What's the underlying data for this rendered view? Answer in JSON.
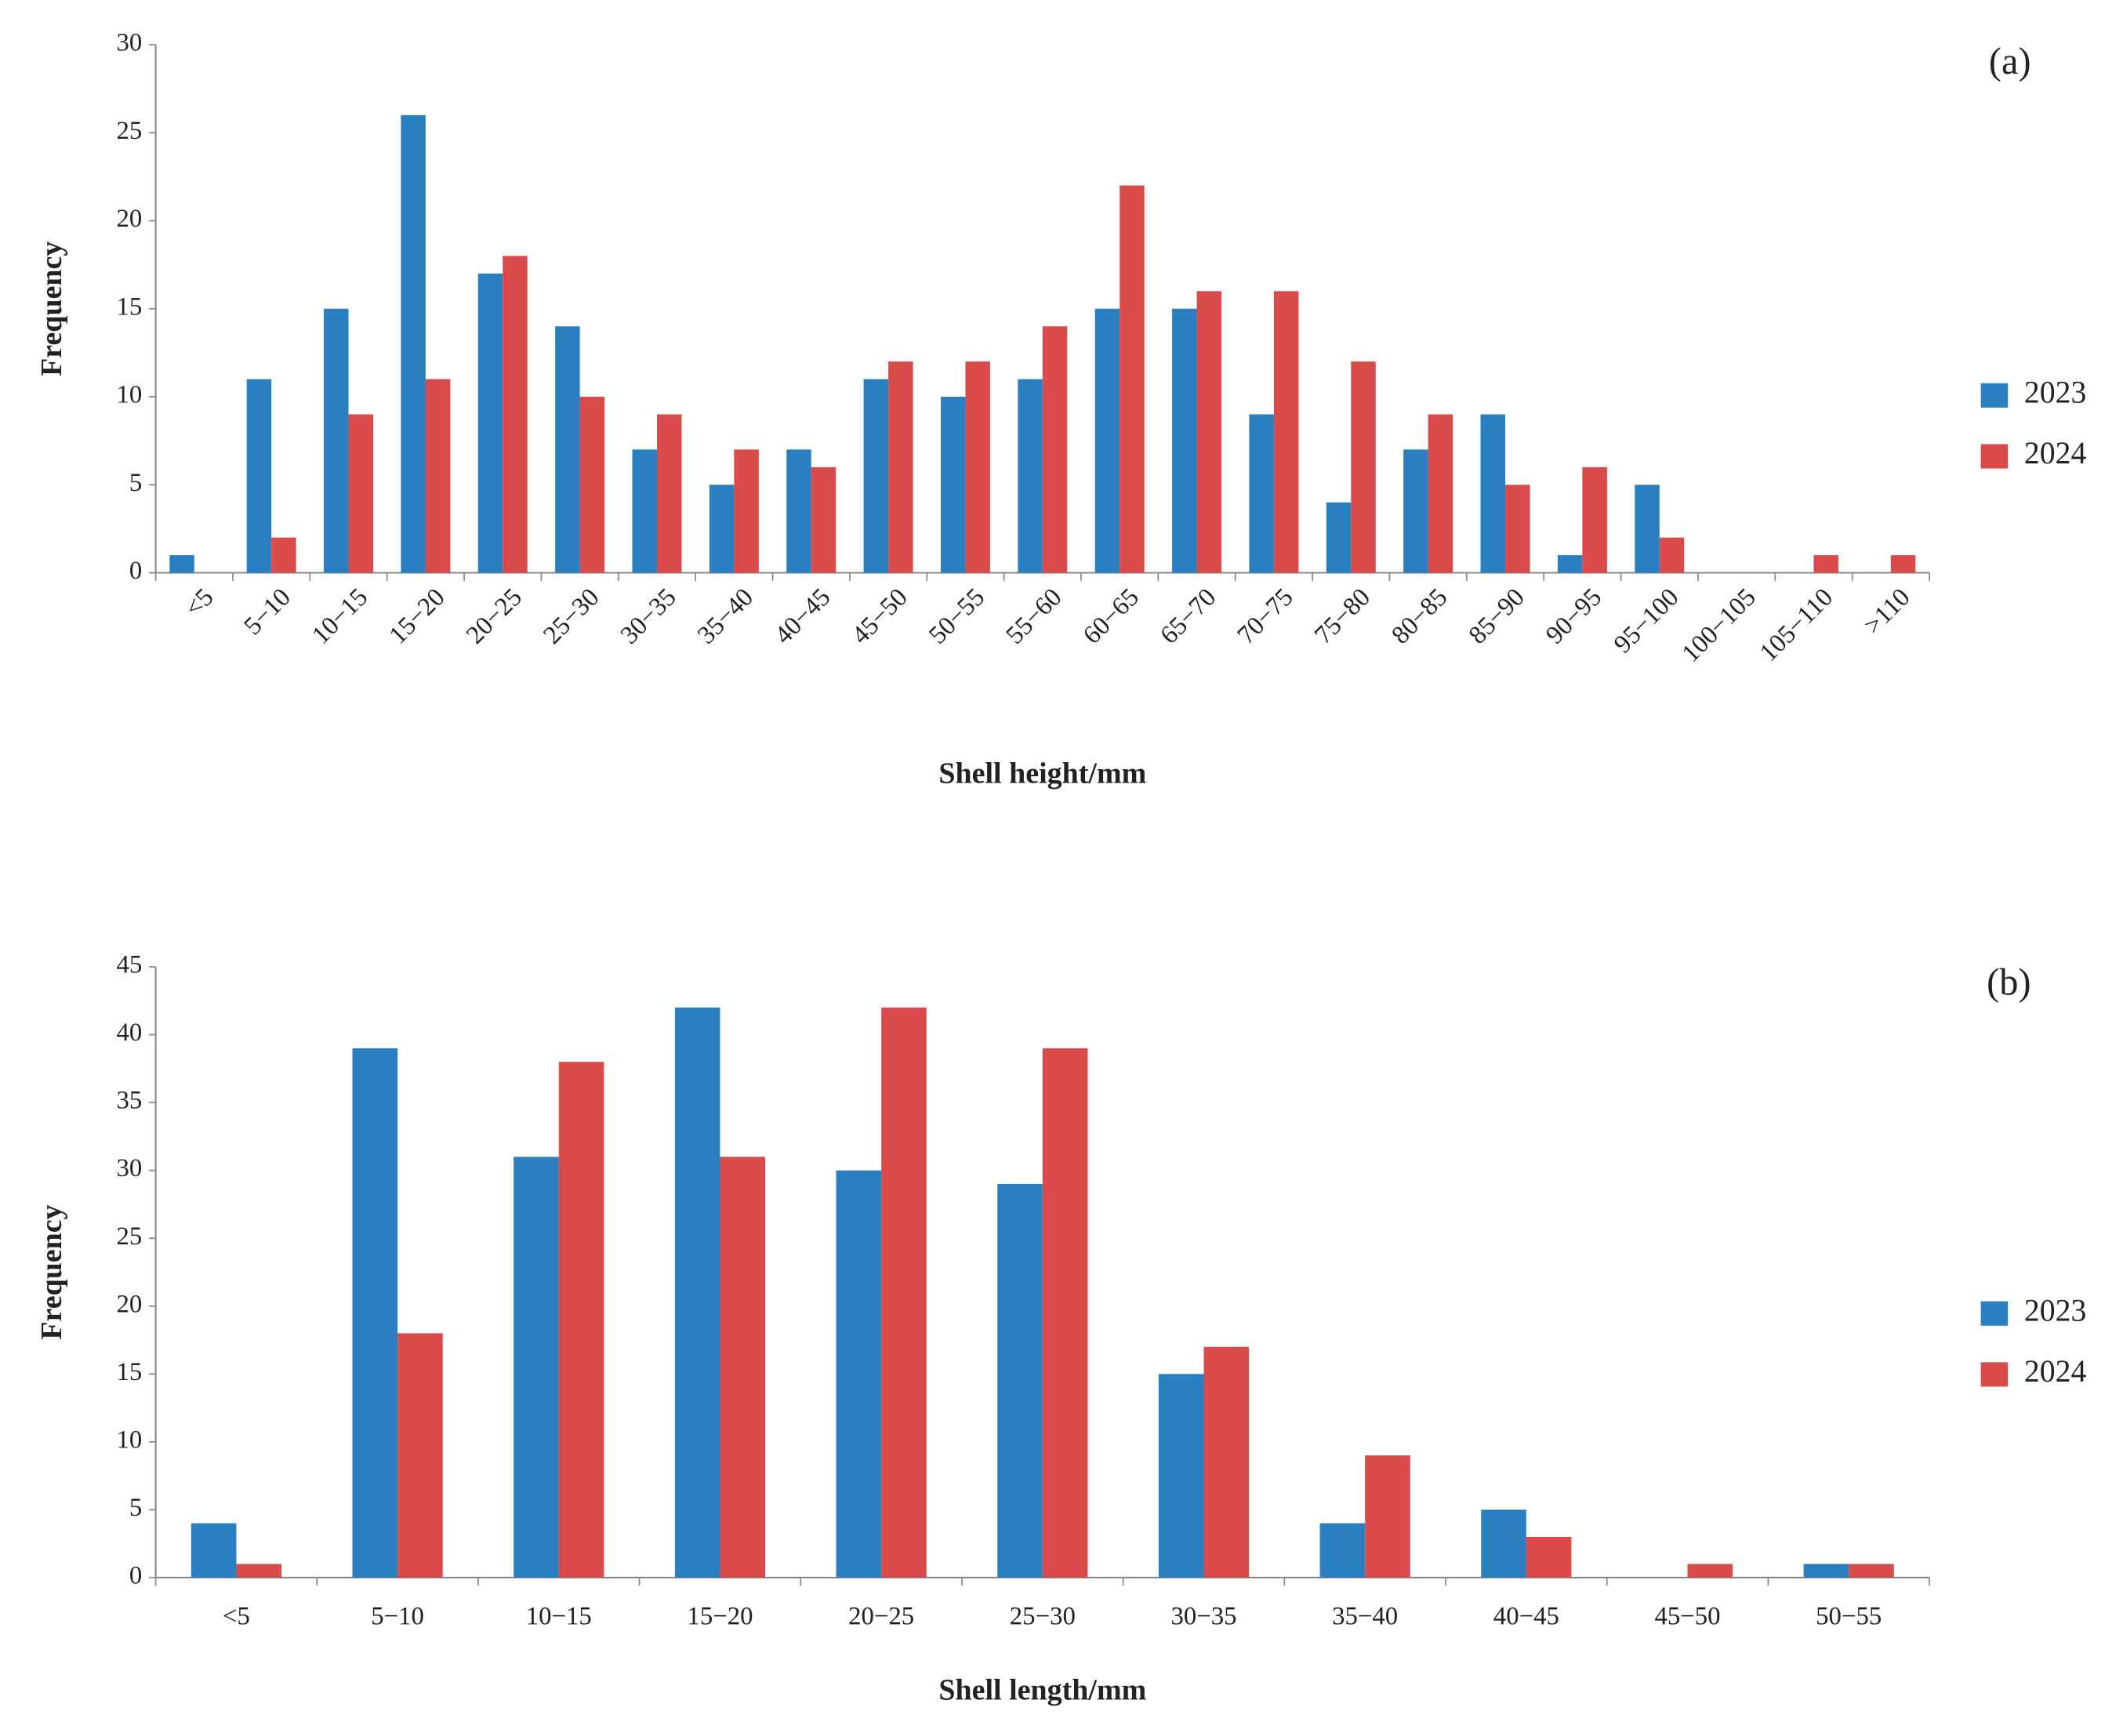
{
  "chart_data": [
    {
      "type": "bar",
      "panel_label": "(a)",
      "x_label": "Shell height/mm",
      "y_label": "Frequency",
      "categories": [
        "<5",
        "5−10",
        "10−15",
        "15−20",
        "20−25",
        "25−30",
        "30−35",
        "35−40",
        "40−45",
        "45−50",
        "50−55",
        "55−60",
        "60−65",
        "65−70",
        "70−75",
        "75−80",
        "80−85",
        "85−90",
        "90−95",
        "95−100",
        "100−105",
        "105−110",
        ">110"
      ],
      "series": [
        {
          "name": "2023",
          "color": "#2a7fc1",
          "values": [
            1,
            11,
            15,
            26,
            17,
            14,
            7,
            5,
            7,
            11,
            10,
            11,
            15,
            15,
            9,
            4,
            7,
            9,
            1,
            5,
            0,
            0,
            0
          ]
        },
        {
          "name": "2024",
          "color": "#d94b4b",
          "values": [
            0,
            2,
            9,
            11,
            18,
            10,
            9,
            7,
            6,
            12,
            12,
            14,
            22,
            16,
            16,
            12,
            9,
            5,
            6,
            2,
            0,
            1,
            1
          ]
        }
      ],
      "ylim": [
        0,
        30
      ],
      "yticks": [
        0,
        5,
        10,
        15,
        20,
        25,
        30
      ],
      "grid": false,
      "legend": "right"
    },
    {
      "type": "bar",
      "panel_label": "(b)",
      "x_label": "Shell length/mm",
      "y_label": "Frequency",
      "categories": [
        "<5",
        "5−10",
        "10−15",
        "15−20",
        "20−25",
        "25−30",
        "30−35",
        "35−40",
        "40−45",
        "45−50",
        "50−55"
      ],
      "series": [
        {
          "name": "2023",
          "color": "#2a7fc1",
          "values": [
            4,
            39,
            31,
            42,
            30,
            29,
            15,
            4,
            5,
            0,
            1
          ]
        },
        {
          "name": "2024",
          "color": "#d94b4b",
          "values": [
            1,
            18,
            38,
            31,
            42,
            39,
            17,
            9,
            3,
            1,
            1
          ]
        }
      ],
      "ylim": [
        0,
        45
      ],
      "yticks": [
        0,
        5,
        10,
        15,
        20,
        25,
        30,
        35,
        40,
        45
      ],
      "grid": false,
      "legend": "right"
    }
  ]
}
